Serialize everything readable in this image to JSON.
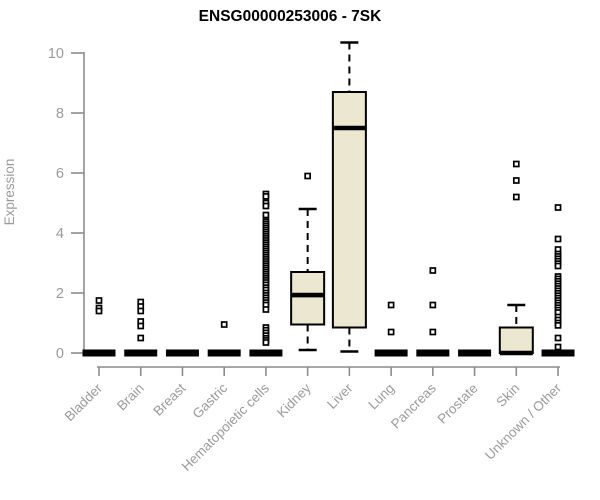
{
  "title": "ENSG00000253006 - 7SK",
  "chart_data": {
    "type": "boxplot",
    "title": "ENSG00000253006 - 7SK",
    "ylabel": "Expression",
    "xlabel": "",
    "ylim": [
      0,
      10
    ],
    "yticks": [
      0,
      2,
      4,
      6,
      8,
      10
    ],
    "grid": false,
    "legend": "none",
    "box_fill": "#ECE7D0",
    "box_stroke": "#000000",
    "axis_color": "#8c8c8c",
    "tick_label_color": "#9a9a9a",
    "title_color": "#000000",
    "categories": [
      "Bladder",
      "Brain",
      "Breast",
      "Gastric",
      "Hematopoietic cells",
      "Kidney",
      "Liver",
      "Lung",
      "Pancreas",
      "Prostate",
      "Skin",
      "Unknown / Other"
    ],
    "series": [
      {
        "category": "Bladder",
        "q1": 0,
        "median": 0,
        "q3": 0,
        "whisker_low": 0,
        "whisker_high": 0,
        "outliers": [
          1.75,
          1.5,
          1.4
        ]
      },
      {
        "category": "Brain",
        "q1": 0,
        "median": 0,
        "q3": 0,
        "whisker_low": 0,
        "whisker_high": 0,
        "outliers": [
          1.7,
          1.55,
          1.4,
          1.05,
          0.9,
          0.5
        ]
      },
      {
        "category": "Breast",
        "q1": 0,
        "median": 0,
        "q3": 0,
        "whisker_low": 0,
        "whisker_high": 0,
        "outliers": []
      },
      {
        "category": "Gastric",
        "q1": 0,
        "median": 0,
        "q3": 0,
        "whisker_low": 0,
        "whisker_high": 0,
        "outliers": [
          0.95
        ]
      },
      {
        "category": "Hematopoietic cells",
        "q1": 0,
        "median": 0,
        "q3": 0,
        "whisker_low": 0,
        "whisker_high": 0,
        "outliers": [
          5.3,
          5.22,
          5.0,
          4.9,
          4.6,
          4.38,
          4.31,
          4.24,
          4.17,
          4.1,
          4.03,
          3.96,
          3.89,
          3.82,
          3.75,
          3.68,
          3.61,
          3.54,
          3.47,
          3.4,
          3.33,
          3.26,
          3.19,
          3.12,
          3.05,
          2.98,
          2.91,
          2.84,
          2.77,
          2.7,
          2.63,
          2.56,
          2.49,
          2.42,
          2.35,
          2.27,
          2.18,
          2.1,
          2.0,
          1.92,
          1.84,
          1.76,
          1.68,
          1.6,
          1.45,
          0.85,
          0.76,
          0.67,
          0.58,
          0.49,
          0.42,
          0.35
        ]
      },
      {
        "category": "Kidney",
        "q1": 0.95,
        "median": 1.93,
        "q3": 2.7,
        "whisker_low": 0.1,
        "whisker_high": 4.8,
        "outliers": [
          5.9
        ]
      },
      {
        "category": "Liver",
        "q1": 0.85,
        "median": 7.5,
        "q3": 8.7,
        "whisker_low": 0.05,
        "whisker_high": 10.35,
        "outliers": []
      },
      {
        "category": "Lung",
        "q1": 0,
        "median": 0,
        "q3": 0,
        "whisker_low": 0,
        "whisker_high": 0,
        "outliers": [
          1.6,
          0.7
        ]
      },
      {
        "category": "Pancreas",
        "q1": 0,
        "median": 0,
        "q3": 0,
        "whisker_low": 0,
        "whisker_high": 0,
        "outliers": [
          2.75,
          1.6,
          0.7
        ]
      },
      {
        "category": "Prostate",
        "q1": 0,
        "median": 0,
        "q3": 0,
        "whisker_low": 0,
        "whisker_high": 0,
        "outliers": []
      },
      {
        "category": "Skin",
        "q1": 0,
        "median": 0,
        "q3": 0.85,
        "whisker_low": 0,
        "whisker_high": 1.6,
        "outliers": [
          6.3,
          5.75,
          5.2
        ]
      },
      {
        "category": "Unknown / Other",
        "q1": 0,
        "median": 0,
        "q3": 0,
        "whisker_low": 0,
        "whisker_high": 0,
        "outliers": [
          4.85,
          3.8,
          3.45,
          3.3,
          3.22,
          3.14,
          3.06,
          2.98,
          2.9,
          2.55,
          2.47,
          2.39,
          2.31,
          2.23,
          2.15,
          2.07,
          1.99,
          1.91,
          1.83,
          1.75,
          1.67,
          1.59,
          1.51,
          1.43,
          1.35,
          1.2,
          1.1,
          1.0,
          0.92,
          0.5,
          0.2
        ]
      }
    ]
  }
}
